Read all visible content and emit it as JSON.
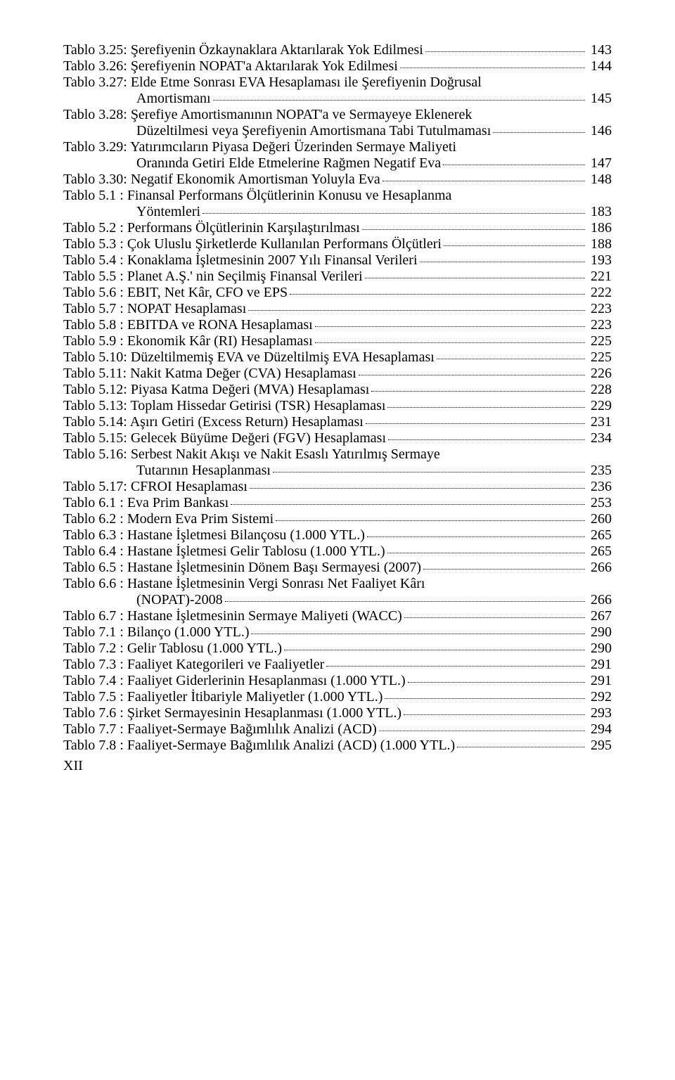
{
  "footer": "XII",
  "entries": [
    {
      "label": "Tablo 3.25:",
      "title": "Şerefiyenin Özkaynaklara Aktarılarak Yok Edilmesi",
      "page": "143",
      "cont": []
    },
    {
      "label": "Tablo 3.26:",
      "title": "Şerefiyenin NOPAT'a Aktarılarak Yok Edilmesi",
      "page": "144",
      "cont": []
    },
    {
      "label": "Tablo 3.27:",
      "title": "Elde Etme Sonrası EVA Hesaplaması ile Şerefiyenin Doğrusal",
      "page": "",
      "cont": [
        {
          "text": "Amortismanı",
          "page": "145"
        }
      ]
    },
    {
      "label": "Tablo 3.28:",
      "title": "Şerefiye Amortismanının NOPAT'a ve Sermayeye Eklenerek",
      "page": "",
      "cont": [
        {
          "text": "Düzeltilmesi veya Şerefiyenin Amortismana Tabi Tutulmaması",
          "page": "146"
        }
      ]
    },
    {
      "label": "Tablo 3.29:",
      "title": "Yatırımcıların Piyasa Değeri Üzerinden Sermaye Maliyeti",
      "page": "",
      "cont": [
        {
          "text": "Oranında Getiri Elde Etmelerine Rağmen Negatif Eva",
          "page": "147"
        }
      ]
    },
    {
      "label": "Tablo 3.30:",
      "title": "Negatif Ekonomik Amortisman Yoluyla Eva",
      "page": "148",
      "cont": []
    },
    {
      "label": "Tablo 5.1  :",
      "title": "Finansal Performans Ölçütlerinin Konusu ve Hesaplanma",
      "page": "",
      "cont": [
        {
          "text": "Yöntemleri",
          "page": "183"
        }
      ]
    },
    {
      "label": "Tablo 5.2  :",
      "title": "Performans Ölçütlerinin Karşılaştırılması",
      "page": "186",
      "cont": []
    },
    {
      "label": "Tablo 5.3  :",
      "title": "Çok Uluslu Şirketlerde Kullanılan Performans Ölçütleri",
      "page": "188",
      "cont": []
    },
    {
      "label": "Tablo 5.4  :",
      "title": "Konaklama İşletmesinin 2007 Yılı Finansal Verileri",
      "page": "193",
      "cont": []
    },
    {
      "label": "Tablo 5.5  :",
      "title": "Planet A.Ş.' nin Seçilmiş Finansal Verileri",
      "page": "221",
      "cont": []
    },
    {
      "label": "Tablo 5.6  :",
      "title": "EBIT, Net Kâr, CFO ve EPS",
      "page": "222",
      "cont": []
    },
    {
      "label": "Tablo 5.7  :",
      "title": "NOPAT Hesaplaması",
      "page": "223",
      "cont": []
    },
    {
      "label": "Tablo 5.8  :",
      "title": "EBITDA ve RONA Hesaplaması",
      "page": "223",
      "cont": []
    },
    {
      "label": "Tablo 5.9  :",
      "title": "Ekonomik Kâr (RI) Hesaplaması",
      "page": "225",
      "cont": []
    },
    {
      "label": "Tablo 5.10:",
      "title": "Düzeltilmemiş EVA ve Düzeltilmiş EVA Hesaplaması",
      "page": "225",
      "cont": []
    },
    {
      "label": "Tablo 5.11:",
      "title": "Nakit Katma Değer (CVA) Hesaplaması",
      "page": "226",
      "cont": []
    },
    {
      "label": "Tablo 5.12:",
      "title": "Piyasa Katma Değeri (MVA) Hesaplaması",
      "page": "228",
      "cont": []
    },
    {
      "label": "Tablo 5.13:",
      "title": "Toplam Hissedar Getirisi (TSR) Hesaplaması",
      "page": "229",
      "cont": []
    },
    {
      "label": "Tablo 5.14:",
      "title": "Aşırı Getiri (Excess Return) Hesaplaması",
      "page": "231",
      "cont": []
    },
    {
      "label": "Tablo 5.15:",
      "title": "Gelecek Büyüme Değeri (FGV) Hesaplaması",
      "page": "234",
      "cont": []
    },
    {
      "label": "Tablo 5.16:",
      "title": "Serbest Nakit Akışı ve Nakit Esaslı Yatırılmış Sermaye",
      "page": "",
      "cont": [
        {
          "text": "Tutarının Hesaplanması",
          "page": "235"
        }
      ]
    },
    {
      "label": "Tablo 5.17:",
      "title": "CFROI Hesaplaması",
      "page": "236",
      "cont": []
    },
    {
      "label": "Tablo 6.1  :",
      "title": "Eva Prim Bankası",
      "page": "253",
      "cont": []
    },
    {
      "label": "Tablo 6.2  :",
      "title": "Modern Eva Prim Sistemi",
      "page": "260",
      "cont": []
    },
    {
      "label": "Tablo 6.3  :",
      "title": "Hastane İşletmesi Bilançosu (1.000 YTL.)",
      "page": "265",
      "cont": []
    },
    {
      "label": "Tablo 6.4  :",
      "title": "Hastane İşletmesi Gelir Tablosu (1.000 YTL.)",
      "page": "265",
      "cont": []
    },
    {
      "label": "Tablo 6.5  :",
      "title": "Hastane İşletmesinin Dönem Başı Sermayesi (2007)",
      "page": "266",
      "cont": []
    },
    {
      "label": "Tablo 6.6  :",
      "title": "Hastane İşletmesinin Vergi Sonrası Net Faaliyet Kârı",
      "page": "",
      "cont": [
        {
          "text": "(NOPAT)-2008",
          "page": "266"
        }
      ]
    },
    {
      "label": "Tablo 6.7  :",
      "title": "Hastane İşletmesinin Sermaye Maliyeti (WACC)",
      "page": "267",
      "cont": []
    },
    {
      "label": "Tablo 7.1  :",
      "title": "Bilanço (1.000 YTL.)",
      "page": "290",
      "cont": []
    },
    {
      "label": "Tablo 7.2  :",
      "title": "Gelir Tablosu (1.000 YTL.)",
      "page": "290",
      "cont": []
    },
    {
      "label": "Tablo 7.3  :",
      "title": "Faaliyet Kategorileri ve Faaliyetler",
      "page": "291",
      "cont": []
    },
    {
      "label": "Tablo 7.4  :",
      "title": "Faaliyet Giderlerinin Hesaplanması (1.000 YTL.)",
      "page": "291",
      "cont": []
    },
    {
      "label": "Tablo 7.5  :",
      "title": "Faaliyetler İtibariyle Maliyetler (1.000 YTL.)",
      "page": "292",
      "cont": []
    },
    {
      "label": "Tablo 7.6  :",
      "title": "Şirket Sermayesinin Hesaplanması (1.000 YTL.)",
      "page": "293",
      "cont": []
    },
    {
      "label": "Tablo 7.7  :",
      "title": "Faaliyet-Sermaye Bağımlılık Analizi (ACD)",
      "page": "294",
      "cont": []
    },
    {
      "label": "Tablo 7.8  :",
      "title": "Faaliyet-Sermaye Bağımlılık Analizi (ACD) (1.000 YTL.)",
      "page": "295",
      "cont": []
    }
  ]
}
